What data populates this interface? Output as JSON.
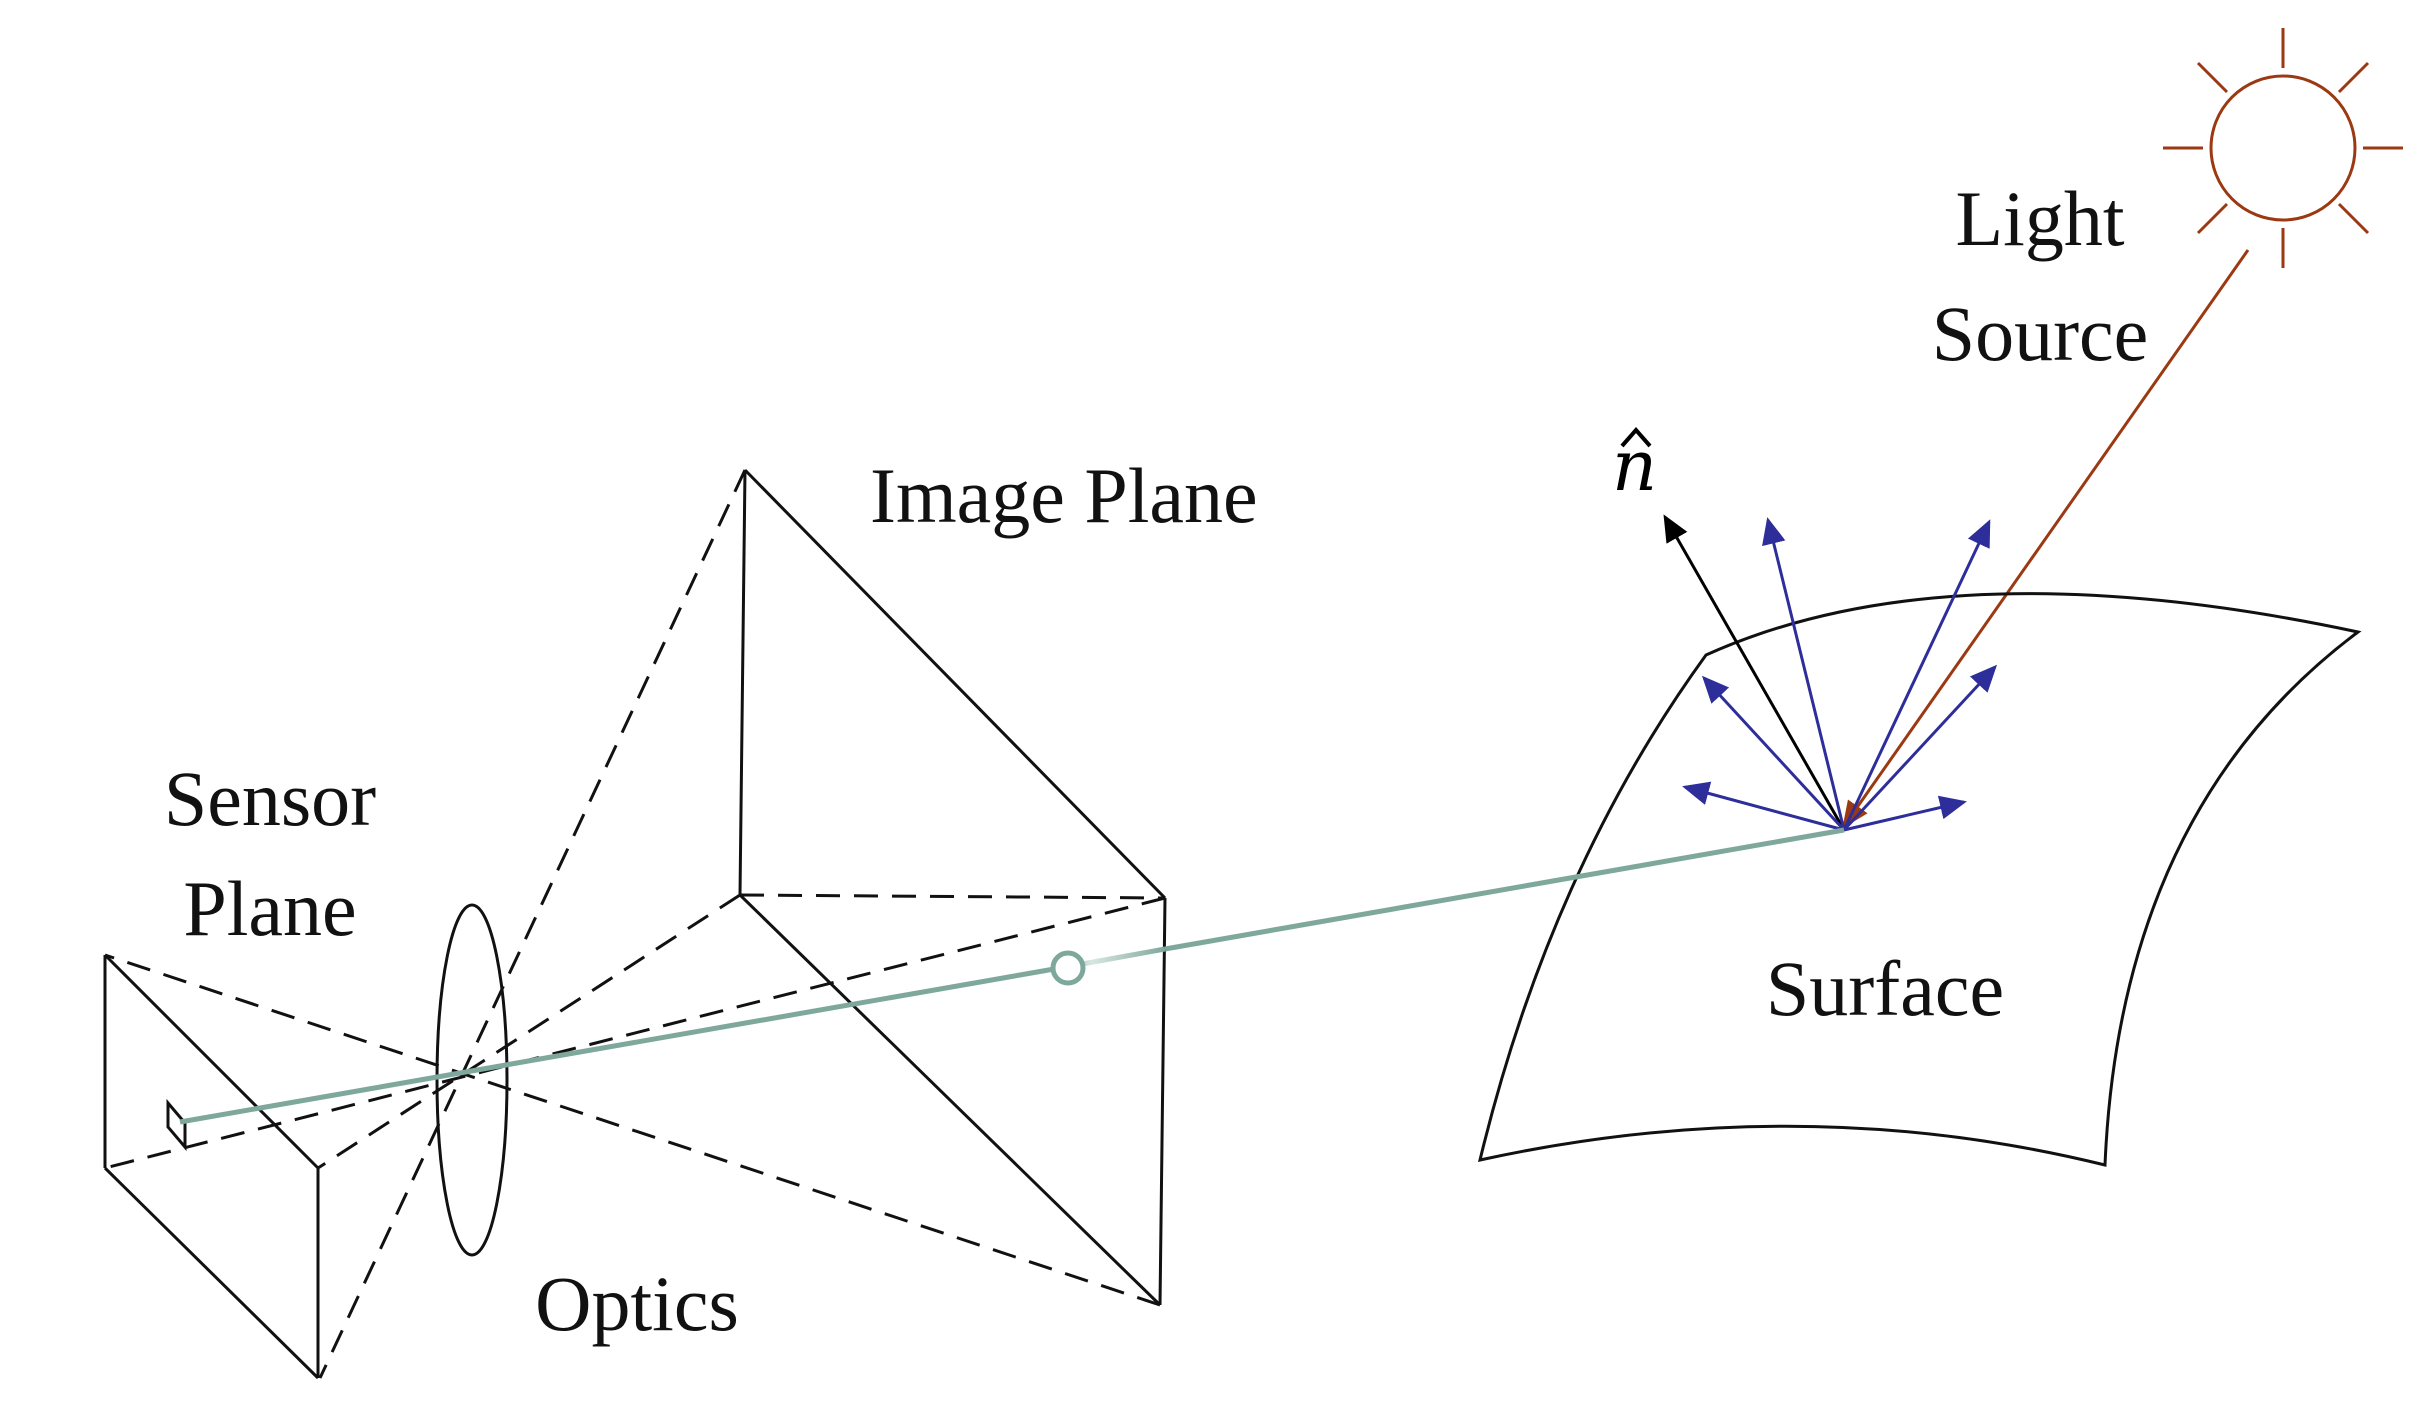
{
  "labels": {
    "light_source": [
      "Light",
      "Source"
    ],
    "image_plane": "Image Plane",
    "normal": "n",
    "sensor_plane": [
      "Sensor",
      "Plane"
    ],
    "surface": "Surface",
    "optics": "Optics"
  },
  "colors": {
    "light_ray": "#9B3A12",
    "sun": "#9B3A12",
    "reflection_arrows": "#2E2E9B",
    "view_ray": "#7FA89C",
    "lines": "#111111"
  }
}
